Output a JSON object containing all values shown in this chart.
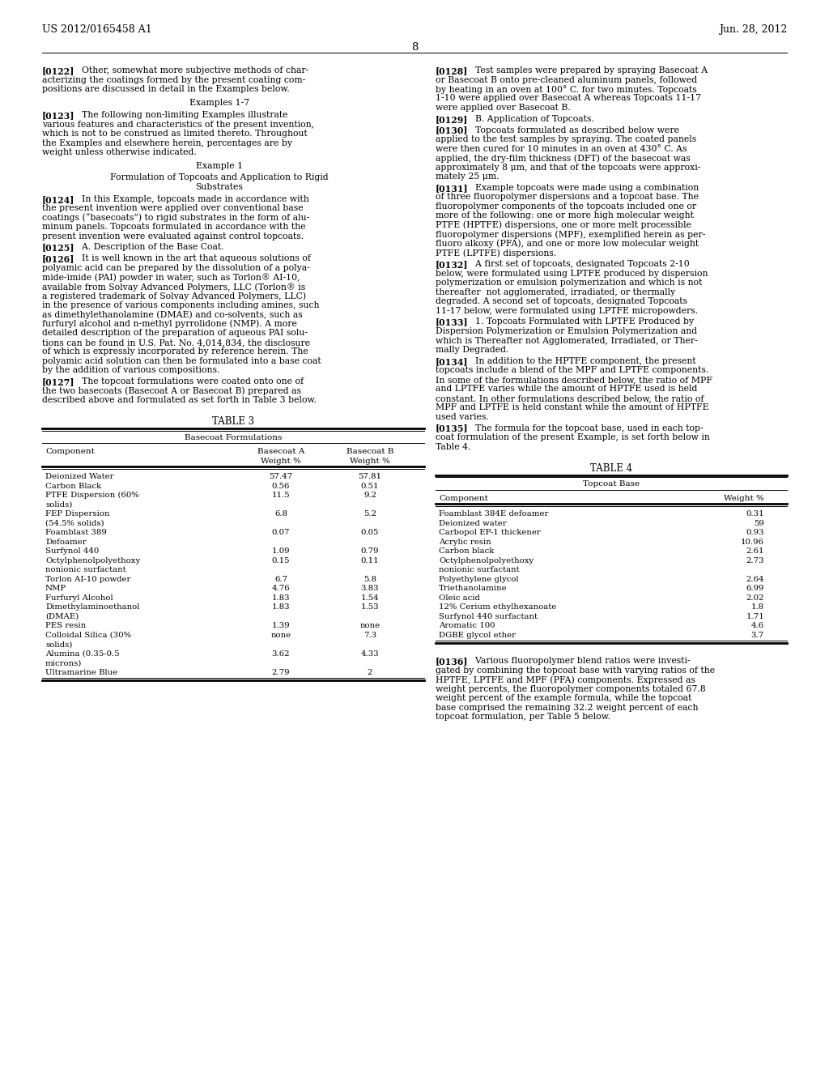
{
  "bg_color": "#ffffff",
  "header_left": "US 2012/0165458 A1",
  "header_right": "Jun. 28, 2012",
  "page_number": "8",
  "table3_title": "TABLE 3",
  "table3_subtitle": "Basecoat Formulations",
  "table3_rows": [
    [
      "Deionized Water",
      "57.47",
      "57.81"
    ],
    [
      "Carbon Black",
      "0.56",
      "0.51"
    ],
    [
      "PTFE Dispersion (60%",
      "11.5",
      "9.2"
    ],
    [
      "solids)",
      "",
      ""
    ],
    [
      "FEP Dispersion",
      "6.8",
      "5.2"
    ],
    [
      "(54.5% solids)",
      "",
      ""
    ],
    [
      "Foamblast 389",
      "0.07",
      "0.05"
    ],
    [
      "Defoamer",
      "",
      ""
    ],
    [
      "Surfynol 440",
      "1.09",
      "0.79"
    ],
    [
      "Octylphenolpolyethoxy",
      "0.15",
      "0.11"
    ],
    [
      "nonionic surfactant",
      "",
      ""
    ],
    [
      "Torlon AI-10 powder",
      "6.7",
      "5.8"
    ],
    [
      "NMP",
      "4.76",
      "3.83"
    ],
    [
      "Furfuryl Alcohol",
      "1.83",
      "1.54"
    ],
    [
      "Dimethylaminoethanol",
      "1.83",
      "1.53"
    ],
    [
      "(DMAE)",
      "",
      ""
    ],
    [
      "PES resin",
      "1.39",
      "none"
    ],
    [
      "Colloidal Silica (30%",
      "none",
      "7.3"
    ],
    [
      "solids)",
      "",
      ""
    ],
    [
      "Alumina (0.35-0.5",
      "3.62",
      "4.33"
    ],
    [
      "microns)",
      "",
      ""
    ],
    [
      "Ultramarine Blue",
      "2.79",
      "2"
    ]
  ],
  "table4_title": "TABLE 4",
  "table4_subtitle": "Topcoat Base",
  "table4_rows": [
    [
      "Foamblast 384E defoamer",
      "0.31"
    ],
    [
      "Deionized water",
      "59"
    ],
    [
      "Carbopol EP-1 thickener",
      "0.93"
    ],
    [
      "Acrylic resin",
      "10.96"
    ],
    [
      "Carbon black",
      "2.61"
    ],
    [
      "Octylphenolpolyethoxy",
      "2.73"
    ],
    [
      "nonionic surfactant",
      ""
    ],
    [
      "Polyethylene glycol",
      "2.64"
    ],
    [
      "Triethanolamine",
      "6.99"
    ],
    [
      "Oleic acid",
      "2.02"
    ],
    [
      "12% Cerium ethylhexanoate",
      "1.8"
    ],
    [
      "Surfynol 440 surfactant",
      "1.71"
    ],
    [
      "Aromatic 100",
      "4.6"
    ],
    [
      "DGBE glycol ether",
      "3.7"
    ]
  ]
}
